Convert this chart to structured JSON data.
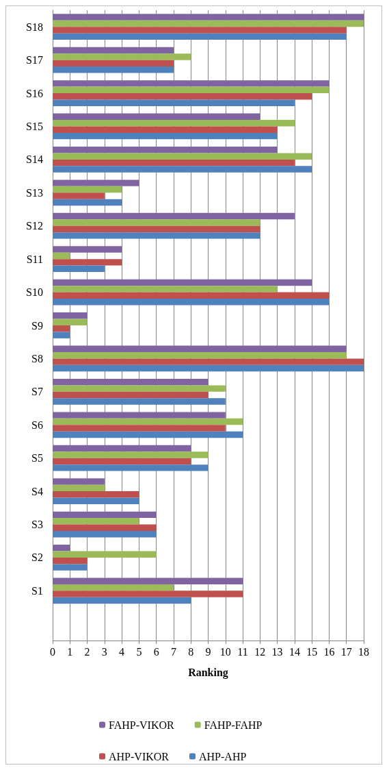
{
  "chart_data": {
    "type": "bar",
    "orientation": "horizontal",
    "xlabel": "Ranking",
    "categories": [
      "S18",
      "S17",
      "S16",
      "S15",
      "S14",
      "S13",
      "S12",
      "S11",
      "S10",
      "S9",
      "S8",
      "S7",
      "S6",
      "S5",
      "S4",
      "S3",
      "S2",
      "S1",
      null
    ],
    "series": [
      {
        "name": "FAHP-VIKOR",
        "color": "#8064a2",
        "values": [
          18,
          7,
          16,
          12,
          13,
          5,
          14,
          4,
          15,
          2,
          17,
          9,
          10,
          8,
          3,
          6,
          1,
          11,
          null
        ]
      },
      {
        "name": "FAHP-FAHP",
        "color": "#9bbb59",
        "values": [
          18,
          8,
          16,
          14,
          15,
          4,
          12,
          1,
          13,
          2,
          17,
          10,
          11,
          9,
          3,
          5,
          6,
          7,
          null
        ]
      },
      {
        "name": "AHP-VIKOR",
        "color": "#c0504d",
        "values": [
          17,
          7,
          15,
          13,
          14,
          3,
          12,
          4,
          16,
          1,
          18,
          9,
          10,
          8,
          5,
          6,
          2,
          11,
          null
        ]
      },
      {
        "name": "AHP-AHP",
        "color": "#4f81bd",
        "values": [
          17,
          7,
          14,
          13,
          15,
          4,
          12,
          3,
          16,
          1,
          18,
          10,
          11,
          9,
          5,
          6,
          2,
          8,
          null
        ]
      }
    ],
    "xlim": [
      0,
      18
    ],
    "xticks": [
      0,
      1,
      2,
      3,
      4,
      5,
      6,
      7,
      8,
      9,
      10,
      11,
      12,
      13,
      14,
      15,
      16,
      17,
      18
    ],
    "grid": "x",
    "legend": "bottom"
  }
}
